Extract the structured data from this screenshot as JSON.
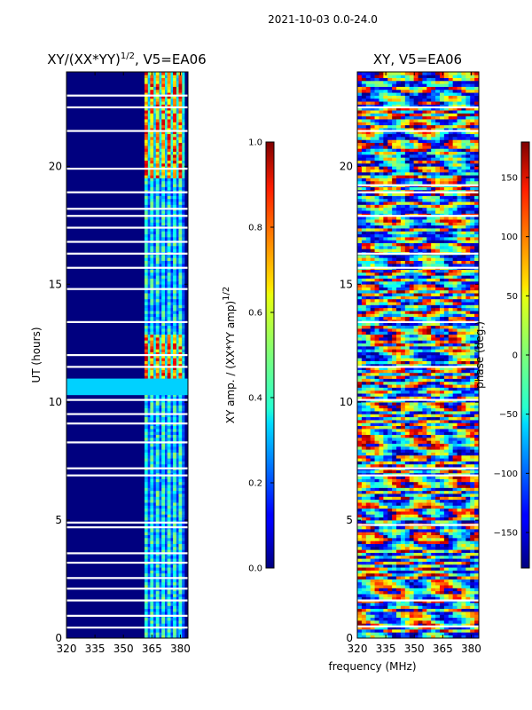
{
  "suptitle": "2021-10-03 0.0-24.0",
  "shared_xlabel": "frequency (MHz)",
  "chart_data": [
    {
      "type": "heatmap",
      "title_main": "XY/(XX*YY)",
      "title_sup": "1/2",
      "title_suffix": ", V5=EA06",
      "xlabel": "frequency (MHz)",
      "ylabel": "UT (hours)",
      "xlim": [
        320,
        384
      ],
      "ylim": [
        0,
        24
      ],
      "xticks": [
        "320",
        "335",
        "350",
        "365",
        "380"
      ],
      "yticks": [
        "0",
        "5",
        "10",
        "15",
        "20"
      ],
      "colorbar": {
        "label_main": "XY amp. / (XX*YY amp)",
        "label_sup": "1/2",
        "range": [
          0.0,
          1.0
        ],
        "ticks": [
          "0.0",
          "0.2",
          "0.4",
          "0.6",
          "0.8",
          "1.0"
        ]
      },
      "background_color": "#00007f",
      "active_band_mhz": [
        361,
        383
      ],
      "band_channels_mhz": [
        362.5,
        365.5,
        368.5,
        371.5,
        374.5,
        377.5,
        380.5
      ],
      "bright_rows_hours": [
        [
          10.3,
          11.0
        ]
      ],
      "high_amp_hours": [
        [
          10.7,
          12.8
        ],
        [
          19.5,
          24
        ]
      ],
      "blank_rows_hours": [
        0.45,
        0.95,
        1.6,
        2.1,
        2.55,
        3.2,
        3.6,
        4.7,
        4.9,
        6.9,
        7.2,
        8.3,
        9.1,
        9.5,
        10.1,
        11.5,
        12.0,
        13.4,
        14.8,
        15.7,
        16.3,
        16.8,
        17.4,
        17.9,
        18.2,
        18.9,
        19.9,
        21.5,
        22.5,
        23.0
      ]
    },
    {
      "type": "heatmap",
      "title": "XY, V5=EA06",
      "xlabel": "frequency (MHz)",
      "ylabel": "",
      "xlim": [
        320,
        384
      ],
      "ylim": [
        0,
        24
      ],
      "xticks": [
        "320",
        "335",
        "350",
        "365",
        "380"
      ],
      "yticks": [
        "0",
        "5",
        "10",
        "15",
        "20"
      ],
      "colorbar": {
        "label": "phase (deg.)",
        "range": [
          -180,
          180
        ],
        "ticks": [
          "−150",
          "−100",
          "−50",
          "0",
          "50",
          "100",
          "150"
        ]
      },
      "blank_rows_hours": [
        0.5,
        1.6,
        4.8,
        6.9,
        7.2,
        10.1,
        11.5,
        13.4,
        15.7,
        16.3,
        17.9,
        18.9,
        19.2,
        21.5,
        22.5
      ]
    }
  ]
}
